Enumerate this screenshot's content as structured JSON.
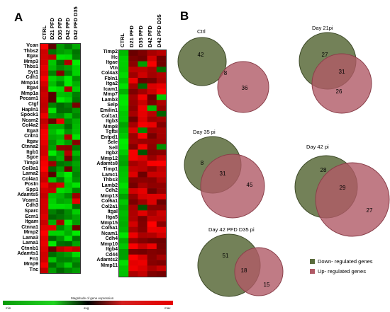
{
  "panelA": {
    "label": "A",
    "heatmap1": {
      "columns": [
        "CTRL",
        "D21 PFD",
        "D35 PFD",
        "D42 PFD",
        "D42 PFD D35"
      ],
      "genes": [
        "Vcan",
        "Thbs2",
        "Itgax",
        "Mmp3",
        "Thbs1",
        "Syt1",
        "Cdh1",
        "Mmp14",
        "Itga4",
        "Mmp1a",
        "Pecam1",
        "Ctgf",
        "Hapln1",
        "Spock1",
        "Ncam2",
        "Col4a2",
        "Itga3",
        "Cntn1",
        "Itgav",
        "Ctnna2",
        "Itgb1",
        "Sgce",
        "Timp3",
        "Col3a1",
        "Lama2",
        "Col4a1",
        "Postn",
        "Spp1",
        "Adamts5",
        "Vcam1",
        "Cdh3",
        "Sparc",
        "Ecm1",
        "Itgam",
        "Ctnna1",
        "Mmp2",
        "Lama3",
        "Lama1",
        "Ctnnb1",
        "Adamts1",
        "Fn1",
        "Mmp9",
        "Tnc"
      ]
    },
    "heatmap2": {
      "columns": [
        "CTRL",
        "D21 PFD",
        "D35 PFD",
        "D42 PFD",
        "D42 PFD D35"
      ],
      "genes": [
        "Timp2",
        "Hc",
        "Itgae",
        "Vtn",
        "Col4a3",
        "Fbln1",
        "Itga2",
        "Icam1",
        "Mmp7",
        "Lamb3",
        "Selp",
        "Emilin1",
        "Col1a1",
        "Itgb3",
        "Mmp8",
        "Tgfbi",
        "Entpd1",
        "Sele",
        "Sell",
        "Itgb2",
        "Mmp12",
        "Adamts8",
        "Timp1",
        "Lamc1",
        "Thbs3",
        "Lamb2",
        "Cdh2",
        "Mmp13",
        "Col6a1",
        "Col2a1",
        "Itgal",
        "Itga5",
        "Mmp15",
        "Col5a1",
        "Ncam1",
        "Cdh4",
        "Mmp10",
        "Itgb4",
        "Cd44",
        "Adamts2",
        "Mmp11"
      ]
    },
    "legend": {
      "title": "Magnitude of gene expression",
      "min": "min",
      "avg": "avg",
      "max": "max"
    },
    "colors": {
      "low": "#00cc00",
      "mid": "#000000",
      "high": "#ff0000"
    }
  },
  "panelB": {
    "label": "B",
    "venns": [
      {
        "title": "Ctrl",
        "down": "42",
        "overlap": "8",
        "up": "36"
      },
      {
        "title": "Day 21pi",
        "down": "27",
        "overlap": "31",
        "up": "26"
      },
      {
        "title": "Day 35 pi",
        "down": "8",
        "overlap": "31",
        "up": "45"
      },
      {
        "title": "Day 42 pi",
        "down": "28",
        "overlap": "29",
        "up": "27"
      },
      {
        "title": "Day 42   PFD D35 pi",
        "down": "51",
        "overlap": "18",
        "up": "15"
      }
    ],
    "legend": [
      {
        "label": "Down- regulated genes",
        "color": "#5a6b3b"
      },
      {
        "label": "Up- regulated genes",
        "color": "#b05a66"
      }
    ]
  }
}
